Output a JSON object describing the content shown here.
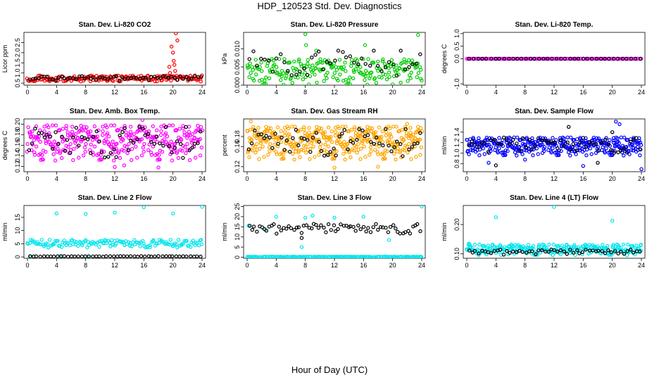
{
  "figure": {
    "title": "HDP_120523  Std. Dev. Diagnostics",
    "xlabel": "Hour of Day (UTC)"
  },
  "chart_data": [
    {
      "type": "scatter",
      "title": "Stan. Dev. Li-820 CO2",
      "ylabel": "Licor ppm",
      "xlim": [
        0,
        24
      ],
      "x_ticks": [
        "0",
        "4",
        "8",
        "12",
        "16",
        "20",
        "24"
      ],
      "ylim": [
        0.4,
        3.0
      ],
      "y_ticks": [
        "0.5",
        "1.0",
        "1.5",
        "2.0",
        "2.5"
      ],
      "colors": {
        "sample": "#ff0000",
        "calibration": "#000000"
      },
      "series": [
        {
          "color": "sample",
          "band": {
            "x": [
              0,
              24
            ],
            "low": 0.58,
            "high": 0.88,
            "n": 170
          },
          "extra": [
            [
              19.5,
              1.3
            ],
            [
              19.8,
              2.3
            ],
            [
              20.0,
              2.0
            ],
            [
              20.1,
              1.6
            ],
            [
              20.3,
              1.1
            ],
            [
              19.6,
              1.0
            ],
            [
              20.4,
              2.95
            ],
            [
              20.6,
              2.6
            ],
            [
              20.2,
              1.4
            ]
          ]
        },
        {
          "color": "calibration",
          "band": {
            "x": [
              0.3,
              23.8
            ],
            "low": 0.62,
            "high": 0.85,
            "n": 60
          }
        }
      ]
    },
    {
      "type": "scatter",
      "title": "Stan. Dev. Li-820 Pressure",
      "ylabel": "kPa",
      "xlim": [
        0,
        24
      ],
      "x_ticks": [
        "0",
        "4",
        "8",
        "12",
        "16",
        "20",
        "24"
      ],
      "ylim": [
        0,
        0.0145
      ],
      "y_ticks": [
        "0.000",
        "0.005",
        "0.010"
      ],
      "colors": {
        "sample": "#00cc00",
        "calibration": "#000000"
      },
      "series": [
        {
          "color": "sample",
          "band": {
            "x": [
              0,
              24
            ],
            "low": 0.0,
            "high": 0.0072,
            "n": 230
          },
          "extra": [
            [
              8.0,
              0.014
            ],
            [
              23.5,
              0.0138
            ],
            [
              8.1,
              0.011
            ],
            [
              16.2,
              0.011
            ],
            [
              9.5,
              0.0095
            ]
          ]
        },
        {
          "color": "calibration",
          "band": {
            "x": [
              0.3,
              23.8
            ],
            "low": 0.0025,
            "high": 0.0095,
            "n": 45
          }
        }
      ]
    },
    {
      "type": "scatter",
      "title": "Stan. Dev. Li-820 Temp.",
      "ylabel": "degrees C",
      "xlim": [
        0,
        24
      ],
      "x_ticks": [
        "0",
        "4",
        "8",
        "12",
        "16",
        "20",
        "24"
      ],
      "ylim": [
        -1.05,
        1.05
      ],
      "y_ticks": [
        "-1.0",
        "0.0",
        "0.5",
        "1.0"
      ],
      "colors": {
        "sample": "#ff00ff",
        "calibration": "#000000"
      },
      "series": [
        {
          "color": "sample",
          "band": {
            "x": [
              0,
              24
            ],
            "low": 0.0,
            "high": 0.0,
            "n": 120
          }
        },
        {
          "color": "calibration",
          "band": {
            "x": [
              0.3,
              23.8
            ],
            "low": 0.0,
            "high": 0.0,
            "n": 40
          }
        }
      ]
    },
    {
      "type": "scatter",
      "title": "Stan. Dev. Amb. Box Temp.",
      "ylabel": "degrees C",
      "xlim": [
        0,
        24
      ],
      "x_ticks": [
        "0",
        "4",
        "8",
        "12",
        "16",
        "20",
        "24"
      ],
      "ylim": [
        0.11,
        0.21
      ],
      "y_ticks": [
        "0.12",
        "0.14",
        "0.16",
        "0.18",
        "0.20"
      ],
      "colors": {
        "sample": "#ff00ff",
        "calibration": "#000000"
      },
      "series": [
        {
          "color": "sample",
          "band": {
            "x": [
              0,
              24
            ],
            "low": 0.13,
            "high": 0.198,
            "n": 330
          },
          "extra": [
            [
              12.0,
              0.119
            ],
            [
              18.0,
              0.118
            ],
            [
              13.3,
              0.122
            ],
            [
              15.8,
              0.208
            ]
          ]
        },
        {
          "color": "calibration",
          "band": {
            "x": [
              0.3,
              23.8
            ],
            "low": 0.135,
            "high": 0.195,
            "n": 60
          }
        }
      ]
    },
    {
      "type": "scatter",
      "title": "Stan. Dev. Gas Stream RH",
      "ylabel": "percent",
      "xlim": [
        0,
        24
      ],
      "x_ticks": [
        "0",
        "4",
        "8",
        "12",
        "16",
        "20",
        "24"
      ],
      "ylim": [
        0.11,
        0.215
      ],
      "y_ticks": [
        "0.12",
        "0.16",
        "0.18"
      ],
      "colors": {
        "sample": "#ffa500",
        "calibration": "#000000"
      },
      "series": [
        {
          "color": "sample",
          "band": {
            "x": [
              0,
              24
            ],
            "low": 0.133,
            "high": 0.2,
            "n": 380
          },
          "extra": [
            [
              0.5,
              0.21
            ],
            [
              12.0,
              0.118
            ],
            [
              18.0,
              0.12
            ],
            [
              22.0,
              0.205
            ]
          ]
        },
        {
          "color": "calibration",
          "band": {
            "x": [
              0.3,
              23.8
            ],
            "low": 0.14,
            "high": 0.195,
            "n": 60
          }
        }
      ]
    },
    {
      "type": "scatter",
      "title": "Stan. Dev. Sample Flow",
      "ylabel": "ml/min",
      "xlim": [
        0,
        24
      ],
      "x_ticks": [
        "0",
        "4",
        "8",
        "12",
        "16",
        "20",
        "24"
      ],
      "ylim": [
        0.65,
        1.65
      ],
      "y_ticks": [
        "0.8",
        "1.0",
        "1.2",
        "1.4"
      ],
      "colors": {
        "sample": "#0000ff",
        "calibration": "#000000"
      },
      "series": [
        {
          "color": "sample",
          "band": {
            "x": [
              0,
              24
            ],
            "low": 0.95,
            "high": 1.3,
            "n": 360
          },
          "extra": [
            [
              20.5,
              1.6
            ],
            [
              21.0,
              1.55
            ],
            [
              24.0,
              0.7
            ],
            [
              16.0,
              0.76
            ],
            [
              3.0,
              0.82
            ],
            [
              8.0,
              0.88
            ]
          ]
        },
        {
          "color": "calibration",
          "band": {
            "x": [
              0.3,
              23.8
            ],
            "low": 1.0,
            "high": 1.3,
            "n": 55
          },
          "extra": [
            [
              4.0,
              0.77
            ],
            [
              18.0,
              0.82
            ],
            [
              20.0,
              1.4
            ],
            [
              14.0,
              1.5
            ]
          ]
        }
      ]
    },
    {
      "type": "scatter",
      "title": "Stan. Dev. Line 2 Flow",
      "ylabel": "ml/min",
      "xlim": [
        0,
        24
      ],
      "x_ticks": [
        "0",
        "4",
        "8",
        "12",
        "16",
        "20",
        "24"
      ],
      "ylim": [
        -0.5,
        19.5
      ],
      "y_ticks": [
        "0",
        "5",
        "10",
        "15"
      ],
      "colors": {
        "sample": "#00e5ee",
        "calibration": "#000000"
      },
      "series": [
        {
          "color": "sample",
          "band": {
            "x": [
              0,
              24
            ],
            "low": 3.5,
            "high": 6.5,
            "n": 150
          },
          "extra": [
            [
              4.0,
              16.5
            ],
            [
              8.0,
              16.3
            ],
            [
              12.0,
              16.8
            ],
            [
              16.0,
              18.8
            ],
            [
              20.0,
              16.5
            ],
            [
              24.0,
              19.0
            ],
            [
              0.5,
              0.2
            ],
            [
              4.5,
              0.3
            ],
            [
              8.5,
              0.2
            ]
          ]
        },
        {
          "color": "calibration",
          "band": {
            "x": [
              0.3,
              23.8
            ],
            "low": 0.1,
            "high": 0.3,
            "n": 50
          }
        }
      ]
    },
    {
      "type": "scatter",
      "title": "Stan. Dev. Line 3 Flow",
      "ylabel": "ml/min",
      "xlim": [
        0,
        24
      ],
      "x_ticks": [
        "0",
        "4",
        "8",
        "12",
        "16",
        "20",
        "24"
      ],
      "ylim": [
        -0.5,
        25.5
      ],
      "y_ticks": [
        "0",
        "5",
        "10",
        "15",
        "20",
        "25"
      ],
      "colors": {
        "sample": "#00e5ee",
        "calibration": "#000000"
      },
      "series": [
        {
          "color": "sample",
          "band": {
            "x": [
              0,
              24
            ],
            "low": 0.0,
            "high": 0.3,
            "n": 170
          },
          "extra": [
            [
              4.0,
              20.0
            ],
            [
              8.0,
              19.5
            ],
            [
              9.0,
              20.5
            ],
            [
              12.0,
              19.5
            ],
            [
              16.0,
              20.0
            ],
            [
              24.0,
              25.0
            ],
            [
              7.5,
              5.0
            ],
            [
              19.5,
              8.5
            ],
            [
              0.2,
              15.5
            ],
            [
              2.5,
              13.5
            ]
          ]
        },
        {
          "color": "calibration",
          "band": {
            "x": [
              0.3,
              23.8
            ],
            "low": 11.5,
            "high": 16.5,
            "n": 70
          },
          "extra": [
            [
              7.5,
              9.5
            ]
          ]
        }
      ]
    },
    {
      "type": "scatter",
      "title": "Stan. Dev. Line 4 (LT) Flow",
      "ylabel": "ml/min",
      "xlim": [
        0,
        24
      ],
      "x_ticks": [
        "0",
        "4",
        "8",
        "12",
        "16",
        "20",
        "24"
      ],
      "ylim": [
        0.085,
        0.265
      ],
      "y_ticks": [
        "0.10",
        "0.20"
      ],
      "colors": {
        "sample": "#00e5ee",
        "calibration": "#000000"
      },
      "series": [
        {
          "color": "sample",
          "band": {
            "x": [
              0,
              24
            ],
            "low": 0.095,
            "high": 0.132,
            "n": 260
          },
          "extra": [
            [
              4.0,
              0.225
            ],
            [
              12.0,
              0.26
            ],
            [
              20.0,
              0.213
            ],
            [
              0.3,
              0.135
            ]
          ]
        },
        {
          "color": "calibration",
          "band": {
            "x": [
              0.3,
              23.8
            ],
            "low": 0.097,
            "high": 0.115,
            "n": 55
          }
        }
      ]
    }
  ]
}
